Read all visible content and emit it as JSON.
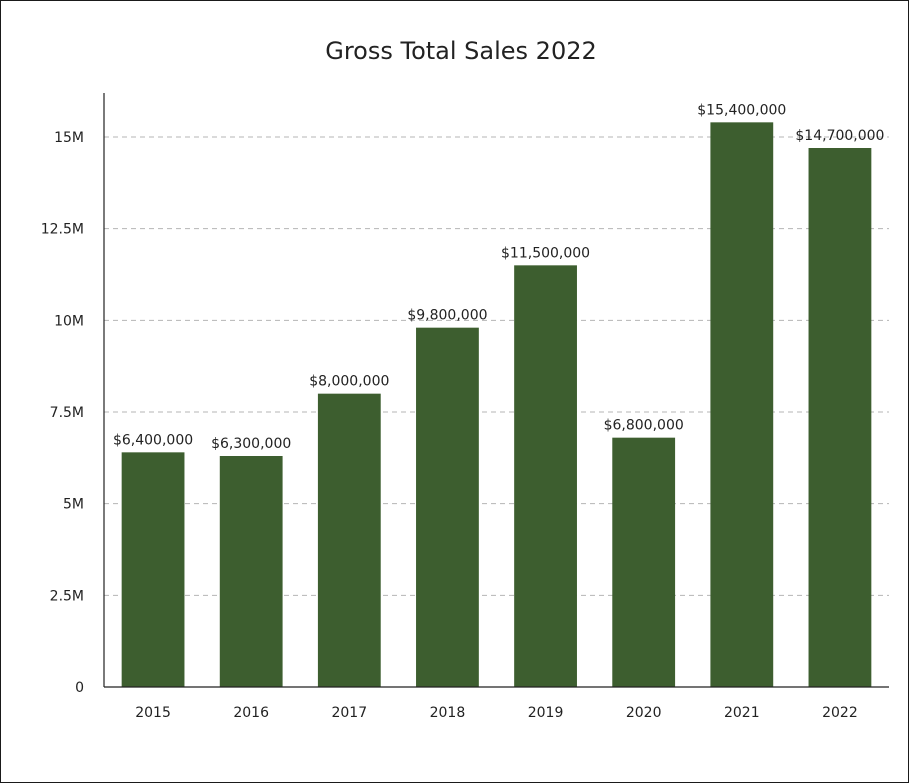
{
  "chart_data": {
    "type": "bar",
    "title": "Gross Total Sales 2022",
    "xlabel": "",
    "ylabel": "",
    "categories": [
      "2015",
      "2016",
      "2017",
      "2018",
      "2019",
      "2020",
      "2021",
      "2022"
    ],
    "values": [
      6400000,
      6300000,
      8000000,
      9800000,
      11500000,
      6800000,
      15400000,
      14700000
    ],
    "data_labels": [
      "$6,400,000",
      "$6,300,000",
      "$8,000,000",
      "$9,800,000",
      "$11,500,000",
      "$6,800,000",
      "$15,400,000",
      "$14,700,000"
    ],
    "ylim": [
      0,
      16200000
    ],
    "yticks": [
      0,
      2500000,
      5000000,
      7500000,
      10000000,
      12500000,
      15000000
    ],
    "ytick_labels": [
      "0",
      "2.5M",
      "5M",
      "7.5M",
      "10M",
      "12.5M",
      "15M"
    ],
    "grid": true,
    "bar_color": "#3d5e2f"
  }
}
